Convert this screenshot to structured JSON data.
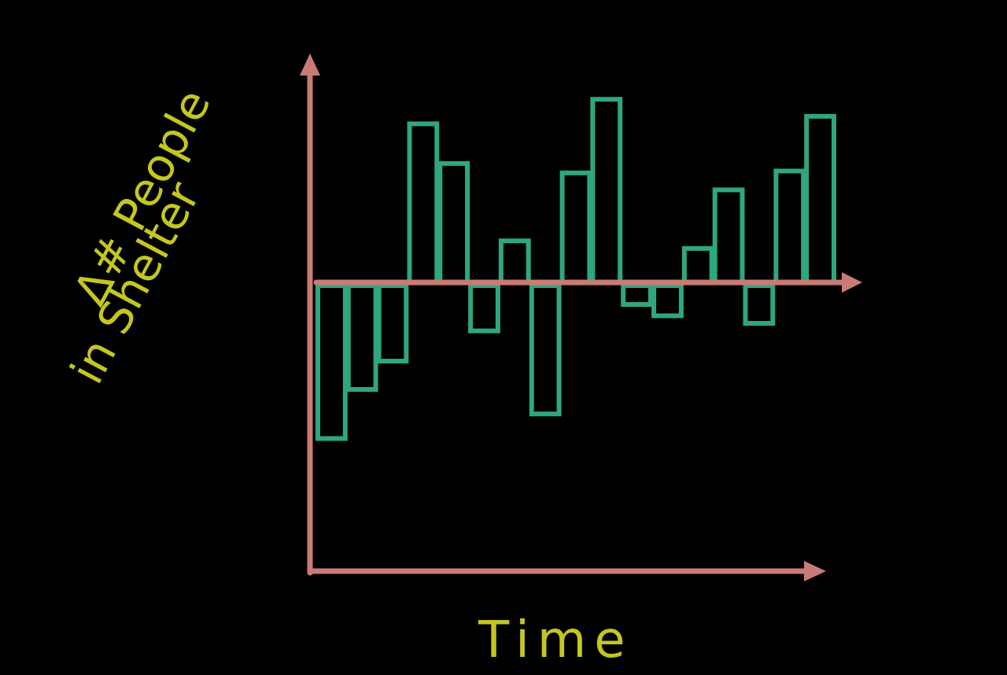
{
  "chart_data": {
    "type": "bar",
    "title": "",
    "xlabel": "Time",
    "ylabel_lines": [
      "Δ# People",
      "in Shelter"
    ],
    "ylabel": "Δ# People in Shelter",
    "x_ticks": "none",
    "y_ticks": "none",
    "grid": false,
    "legend": "none",
    "values": [
      -8.1,
      -5.5,
      -4.0,
      8.4,
      6.3,
      -2.4,
      2.2,
      -6.8,
      5.8,
      9.7,
      -1.0,
      -1.6,
      1.8,
      4.9,
      -2.0,
      5.9,
      8.8
    ],
    "ylim": [
      -15.0,
      12.0
    ],
    "colors": {
      "background": "#000000",
      "bars": "#2fa77c",
      "axes": "#c97b78",
      "labels": "#c3c720"
    }
  }
}
